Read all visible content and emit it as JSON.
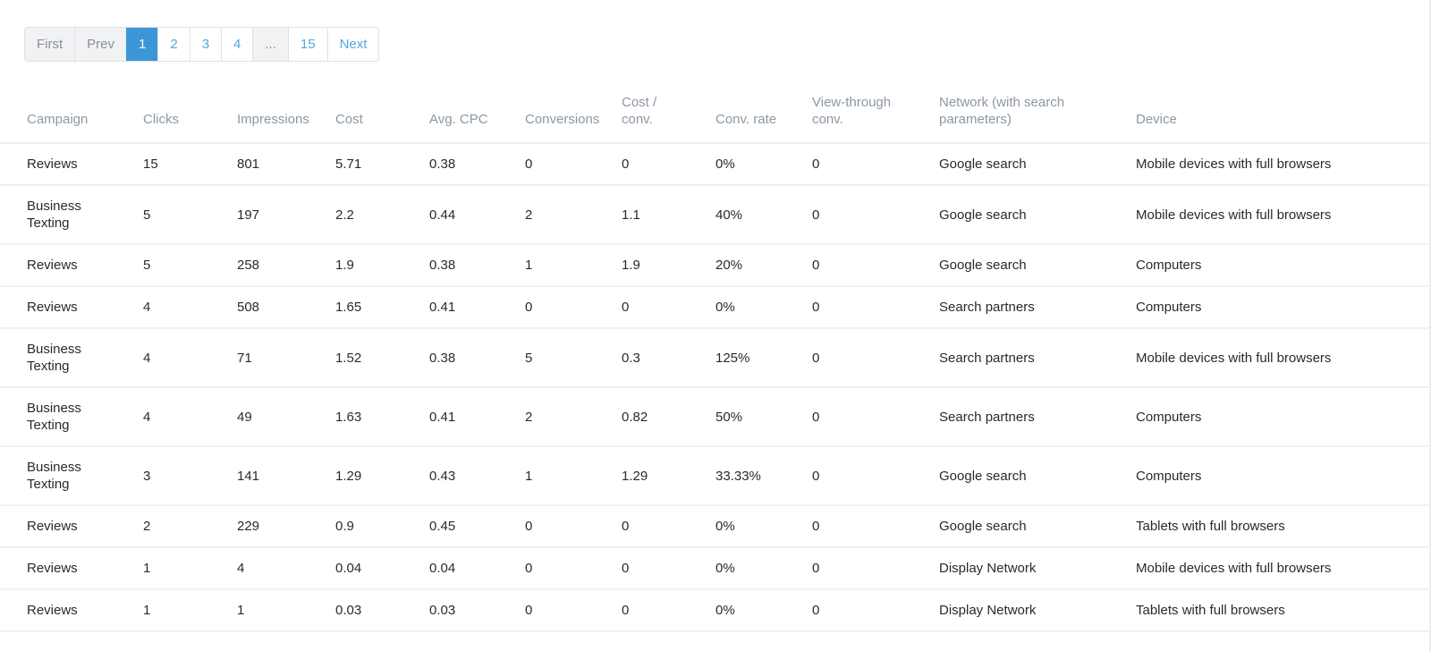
{
  "colors": {
    "accent_blue": "#3b97d7",
    "link_blue": "#54a7e0",
    "disabled_gray_bg": "#f1f2f3",
    "disabled_gray_text": "#8c9196",
    "header_text": "#8c98a4",
    "body_text": "#262b31",
    "row_border": "#edf2f7"
  },
  "pagination": {
    "items": [
      {
        "label": "First",
        "type": "disabled"
      },
      {
        "label": "Prev",
        "type": "disabled"
      },
      {
        "label": "1",
        "type": "active"
      },
      {
        "label": "2",
        "type": "page"
      },
      {
        "label": "3",
        "type": "page"
      },
      {
        "label": "4",
        "type": "page"
      },
      {
        "label": "...",
        "type": "disabled"
      },
      {
        "label": "15",
        "type": "page"
      },
      {
        "label": "Next",
        "type": "page"
      }
    ]
  },
  "table": {
    "columns": [
      {
        "key": "campaign",
        "label": "Campaign"
      },
      {
        "key": "clicks",
        "label": "Clicks"
      },
      {
        "key": "impressions",
        "label": "Impressions"
      },
      {
        "key": "cost",
        "label": "Cost"
      },
      {
        "key": "avg-cpc",
        "label": "Avg. CPC"
      },
      {
        "key": "conversions",
        "label": "Conversions"
      },
      {
        "key": "cost-per-conv",
        "label": "Cost / conv."
      },
      {
        "key": "conv-rate",
        "label": "Conv. rate"
      },
      {
        "key": "view-through-conv",
        "label": "View-through conv."
      },
      {
        "key": "network",
        "label": "Network (with search parameters)"
      },
      {
        "key": "device",
        "label": "Device"
      }
    ],
    "rows": [
      [
        "Reviews",
        "15",
        "801",
        "5.71",
        "0.38",
        "0",
        "0",
        "0%",
        "0",
        "Google search",
        "Mobile devices with full browsers"
      ],
      [
        "Business Texting",
        "5",
        "197",
        "2.2",
        "0.44",
        "2",
        "1.1",
        "40%",
        "0",
        "Google search",
        "Mobile devices with full browsers"
      ],
      [
        "Reviews",
        "5",
        "258",
        "1.9",
        "0.38",
        "1",
        "1.9",
        "20%",
        "0",
        "Google search",
        "Computers"
      ],
      [
        "Reviews",
        "4",
        "508",
        "1.65",
        "0.41",
        "0",
        "0",
        "0%",
        "0",
        "Search partners",
        "Computers"
      ],
      [
        "Business Texting",
        "4",
        "71",
        "1.52",
        "0.38",
        "5",
        "0.3",
        "125%",
        "0",
        "Search partners",
        "Mobile devices with full browsers"
      ],
      [
        "Business Texting",
        "4",
        "49",
        "1.63",
        "0.41",
        "2",
        "0.82",
        "50%",
        "0",
        "Search partners",
        "Computers"
      ],
      [
        "Business Texting",
        "3",
        "141",
        "1.29",
        "0.43",
        "1",
        "1.29",
        "33.33%",
        "0",
        "Google search",
        "Computers"
      ],
      [
        "Reviews",
        "2",
        "229",
        "0.9",
        "0.45",
        "0",
        "0",
        "0%",
        "0",
        "Google search",
        "Tablets with full browsers"
      ],
      [
        "Reviews",
        "1",
        "4",
        "0.04",
        "0.04",
        "0",
        "0",
        "0%",
        "0",
        "Display Network",
        "Mobile devices with full browsers"
      ],
      [
        "Reviews",
        "1",
        "1",
        "0.03",
        "0.03",
        "0",
        "0",
        "0%",
        "0",
        "Display Network",
        "Tablets with full browsers"
      ]
    ]
  }
}
